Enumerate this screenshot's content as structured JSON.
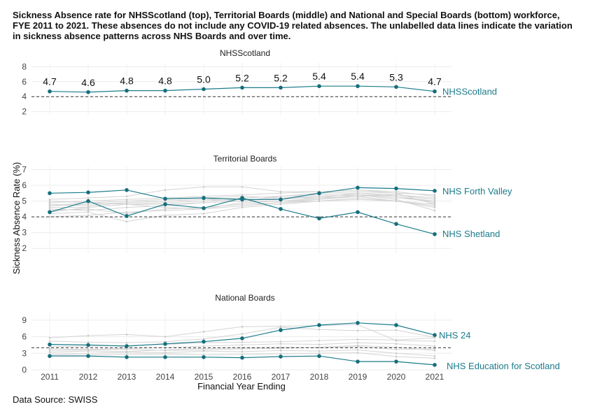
{
  "title": "Sickness Absence rate for NHSScotland (top), Territorial Boards (middle) and National and Special Boards (bottom) workforce, FYE 2011 to 2021. These absences do not include any COVID-19 related absences. The unlabelled data lines indicate the variation in sickness absence patterns across NHS Boards and over time.",
  "source": "Data Source: SWISS",
  "colors": {
    "highlight": "#1b7b8a",
    "background_lines": "#d4d4d4",
    "target_line": "#333333",
    "grid": "#ececec"
  },
  "chart_data": {
    "type": "line",
    "xlabel": "Financial Year Ending",
    "ylabel": "Sickness Absence Rate (%)",
    "x": [
      2011,
      2012,
      2013,
      2014,
      2015,
      2016,
      2017,
      2018,
      2019,
      2020,
      2021
    ],
    "target": 4,
    "panels": [
      {
        "title": "NHSScotland",
        "ylim": [
          1.5,
          8.5
        ],
        "yticks": [
          2,
          4,
          6,
          8
        ],
        "series": [
          {
            "name": "NHSScotland",
            "values": [
              4.7,
              4.6,
              4.8,
              4.8,
              5.0,
              5.2,
              5.2,
              5.4,
              5.4,
              5.3,
              4.7
            ]
          }
        ],
        "value_labels": [
          "4.7",
          "4.6",
          "4.8",
          "4.8",
          "5.0",
          "5.2",
          "5.2",
          "5.4",
          "5.4",
          "5.3",
          "4.7"
        ],
        "background": []
      },
      {
        "title": "Territorial Boards",
        "ylim": [
          1.7,
          7.2
        ],
        "yticks": [
          2,
          3,
          4,
          5,
          6,
          7
        ],
        "series": [
          {
            "name": "NHS Forth Valley",
            "values": [
              5.5,
              5.55,
              5.7,
              5.15,
              5.2,
              5.1,
              5.1,
              5.5,
              5.85,
              5.8,
              5.65
            ]
          },
          {
            "name": "NHS Shetland",
            "values": [
              4.3,
              5.0,
              4.05,
              4.8,
              4.55,
              5.2,
              4.5,
              3.9,
              4.3,
              3.55,
              2.9
            ]
          }
        ],
        "background": [
          [
            4.4,
            4.5,
            4.2,
            4.5,
            4.6,
            4.8,
            4.9,
            5.0,
            5.1,
            5.0,
            4.8
          ],
          [
            4.7,
            4.8,
            4.9,
            5.0,
            5.1,
            5.2,
            5.3,
            5.4,
            5.5,
            5.4,
            5.1
          ],
          [
            5.1,
            5.2,
            5.3,
            5.7,
            5.9,
            5.9,
            5.6,
            5.6,
            5.7,
            5.5,
            4.8
          ],
          [
            4.6,
            4.6,
            4.8,
            4.9,
            5.0,
            5.1,
            5.1,
            5.3,
            5.4,
            5.2,
            5.0
          ],
          [
            4.2,
            4.3,
            3.7,
            4.1,
            4.2,
            4.6,
            4.8,
            5.0,
            5.2,
            5.0,
            4.7
          ],
          [
            4.9,
            5.0,
            5.1,
            5.2,
            5.3,
            5.4,
            5.5,
            5.6,
            5.7,
            5.6,
            5.3
          ],
          [
            4.5,
            4.4,
            4.6,
            4.7,
            4.9,
            5.0,
            5.2,
            5.3,
            5.4,
            5.3,
            5.0
          ],
          [
            4.0,
            4.1,
            4.3,
            4.4,
            4.5,
            4.7,
            4.9,
            5.1,
            5.3,
            5.0,
            4.6
          ],
          [
            5.0,
            4.9,
            5.0,
            5.1,
            5.2,
            5.3,
            5.2,
            5.2,
            5.5,
            5.3,
            4.9
          ],
          [
            4.8,
            4.7,
            4.9,
            5.0,
            5.1,
            5.0,
            5.0,
            5.1,
            5.4,
            5.1,
            4.4
          ],
          [
            4.3,
            4.6,
            4.8,
            4.6,
            4.5,
            4.9,
            5.0,
            5.2,
            5.3,
            5.4,
            5.2
          ],
          [
            4.7,
            4.9,
            4.8,
            4.8,
            4.9,
            5.0,
            5.3,
            5.5,
            5.6,
            5.5,
            5.4
          ]
        ]
      },
      {
        "title": "National Boards",
        "ylim": [
          0,
          10.5
        ],
        "yticks": [
          0,
          3,
          6,
          9
        ],
        "series": [
          {
            "name": "NHS 24",
            "values": [
              4.6,
              4.5,
              4.3,
              4.7,
              5.1,
              5.7,
              7.2,
              8.1,
              8.5,
              8.1,
              6.3
            ]
          },
          {
            "name": "NHS Education for Scotland",
            "values": [
              2.5,
              2.5,
              2.3,
              2.3,
              2.3,
              2.2,
              2.4,
              2.5,
              1.5,
              1.5,
              0.9
            ]
          }
        ],
        "background": [
          [
            5.8,
            6.2,
            6.4,
            6.0,
            6.9,
            7.8,
            7.9,
            8.0,
            8.2,
            5.3,
            5.2
          ],
          [
            4.2,
            4.3,
            4.4,
            4.6,
            4.9,
            5.0,
            5.1,
            5.3,
            5.5,
            5.4,
            5.8
          ],
          [
            3.8,
            3.7,
            3.9,
            4.0,
            4.3,
            4.5,
            4.7,
            4.6,
            4.9,
            4.7,
            4.3
          ],
          [
            3.2,
            3.4,
            3.3,
            3.6,
            3.9,
            4.0,
            4.1,
            4.0,
            4.2,
            3.7,
            3.8
          ],
          [
            2.8,
            3.0,
            3.2,
            3.1,
            3.4,
            3.3,
            3.5,
            3.4,
            3.6,
            3.0,
            2.5
          ],
          [
            5.2,
            5.0,
            4.9,
            5.1,
            5.6,
            6.5,
            7.7,
            7.3,
            7.1,
            7.2,
            5.9
          ],
          [
            3.5,
            3.6,
            3.7,
            3.5,
            3.6,
            3.8,
            3.9,
            4.1,
            4.4,
            4.1,
            3.5
          ],
          [
            2.6,
            2.7,
            2.8,
            2.9,
            2.7,
            2.8,
            2.9,
            3.0,
            3.1,
            2.4,
            2.1
          ]
        ]
      }
    ]
  }
}
